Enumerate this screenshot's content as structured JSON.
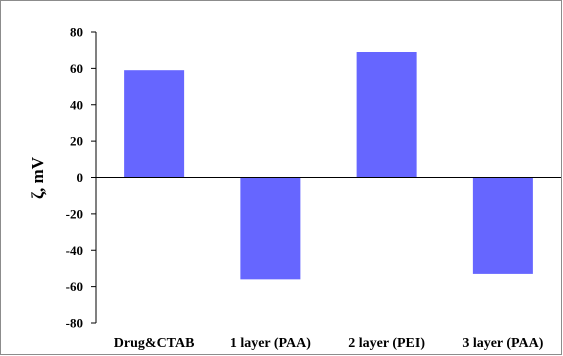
{
  "chart_data": {
    "type": "bar",
    "categories": [
      "Drug&CTAB",
      "1 layer (PAA)",
      "2 layer (PEI)",
      "3 layer (PAA)"
    ],
    "values": [
      59,
      -56,
      69,
      -53
    ],
    "ylabel": "ζ, mV",
    "ylim": [
      -80,
      80
    ],
    "yticks": [
      80,
      60,
      40,
      20,
      0,
      -20,
      -40,
      -60,
      -80
    ],
    "grid": false,
    "legend": "none",
    "bar_color": "#6666ff"
  }
}
